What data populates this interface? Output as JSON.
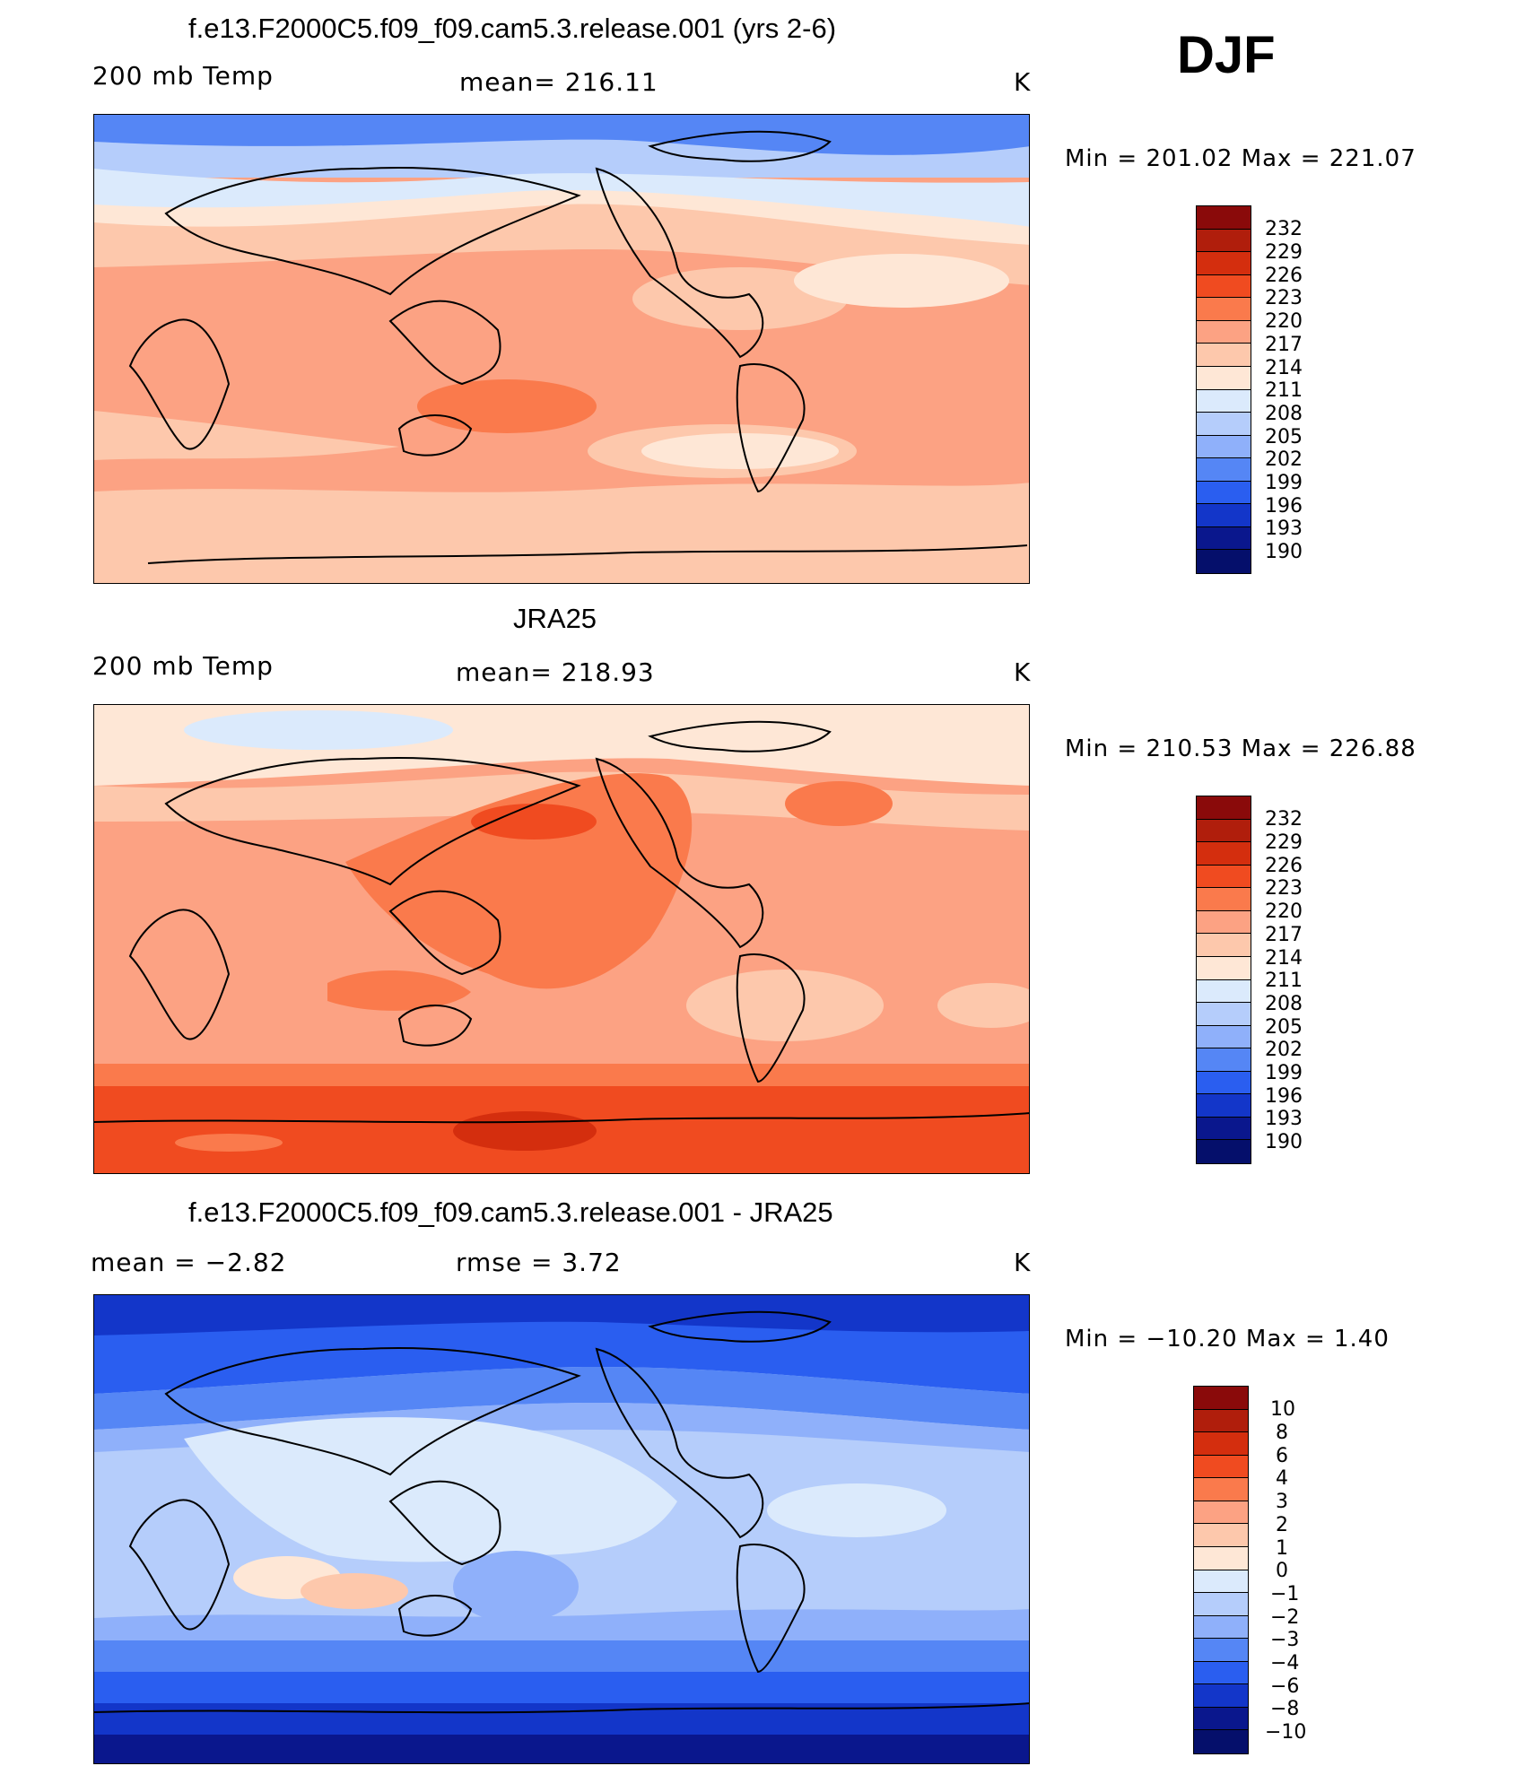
{
  "season": "DJF",
  "panels": [
    {
      "title": "f.e13.F2000C5.f09_f09.cam5.3.release.001 (yrs 2-6)",
      "left": "200 mb Temp",
      "center": "mean=  216.11",
      "units": "K",
      "minmax": "Min  =  201.02  Max  =  221.07",
      "colorbar": {
        "labels": [
          "232",
          "229",
          "226",
          "223",
          "220",
          "217",
          "214",
          "211",
          "208",
          "205",
          "202",
          "199",
          "196",
          "193",
          "190"
        ],
        "colors": [
          "#8a0a0a",
          "#b01e0c",
          "#d42e0e",
          "#f04b20",
          "#fa7a4c",
          "#fca283",
          "#fdc8ac",
          "#fee7d6",
          "#dbeafc",
          "#b5cdfb",
          "#8fb0fa",
          "#5586f5",
          "#2a5ef0",
          "#1336c9",
          "#0a178d",
          "#050f6b"
        ]
      }
    },
    {
      "title": "JRA25",
      "left": "200 mb Temp",
      "center": "mean=  218.93",
      "units": "K",
      "minmax": "Min  =  210.53  Max  =  226.88",
      "colorbar": {
        "labels": [
          "232",
          "229",
          "226",
          "223",
          "220",
          "217",
          "214",
          "211",
          "208",
          "205",
          "202",
          "199",
          "196",
          "193",
          "190"
        ],
        "colors": [
          "#8a0a0a",
          "#b01e0c",
          "#d42e0e",
          "#f04b20",
          "#fa7a4c",
          "#fca283",
          "#fdc8ac",
          "#fee7d6",
          "#dbeafc",
          "#b5cdfb",
          "#8fb0fa",
          "#5586f5",
          "#2a5ef0",
          "#1336c9",
          "#0a178d",
          "#050f6b"
        ]
      }
    },
    {
      "title": "f.e13.F2000C5.f09_f09.cam5.3.release.001 - JRA25",
      "left": "mean =    −2.82",
      "center": "rmse  =     3.72",
      "units": "K",
      "minmax": "Min  =  −10.20  Max  =     1.40",
      "colorbar": {
        "labels": [
          "10",
          "8",
          "6",
          "4",
          "3",
          "2",
          "1",
          "0",
          "−1",
          "−2",
          "−3",
          "−4",
          "−6",
          "−8",
          "−10"
        ],
        "colors": [
          "#8a0a0a",
          "#b01e0c",
          "#d42e0e",
          "#f04b20",
          "#fa7a4c",
          "#fca283",
          "#fdc8ac",
          "#fee7d6",
          "#dbeafc",
          "#b5cdfb",
          "#8fb0fa",
          "#5586f5",
          "#2a5ef0",
          "#1336c9",
          "#0a178d",
          "#050f6b"
        ]
      }
    }
  ]
}
